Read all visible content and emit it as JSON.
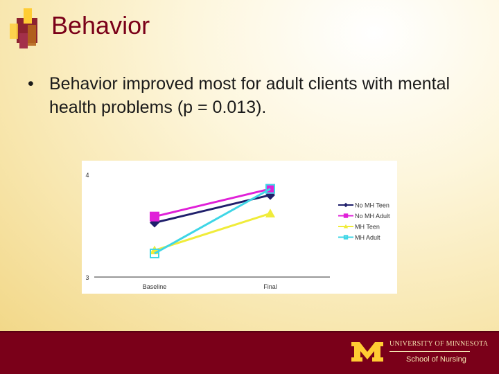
{
  "slide": {
    "title": "Behavior",
    "bullet_symbol": "•",
    "bullet_text": "Behavior improved most for adult clients with mental health problems (p = 0.013)."
  },
  "footer": {
    "university": "UNIVERSITY OF MINNESOTA",
    "school": "School of Nursing"
  },
  "colors": {
    "maroon": "#7a0019",
    "gold": "#ffcc33"
  },
  "chart_data": {
    "type": "line",
    "categories": [
      "Baseline",
      "Final"
    ],
    "ylim": [
      3,
      4
    ],
    "yticks": [
      "3",
      "4"
    ],
    "legend_position": "right",
    "series": [
      {
        "name": "No MH Teen",
        "values": [
          3.53,
          3.8
        ],
        "color": "#1f1f6b",
        "marker": "diamond"
      },
      {
        "name": "No MH Adult",
        "values": [
          3.59,
          3.86
        ],
        "color": "#e020d8",
        "marker": "square"
      },
      {
        "name": "MH Teen",
        "values": [
          3.26,
          3.62
        ],
        "color": "#f0ec3a",
        "marker": "triangle"
      },
      {
        "name": "MH Adult",
        "values": [
          3.23,
          3.86
        ],
        "color": "#3fd6e6",
        "marker": "square-open"
      }
    ]
  }
}
